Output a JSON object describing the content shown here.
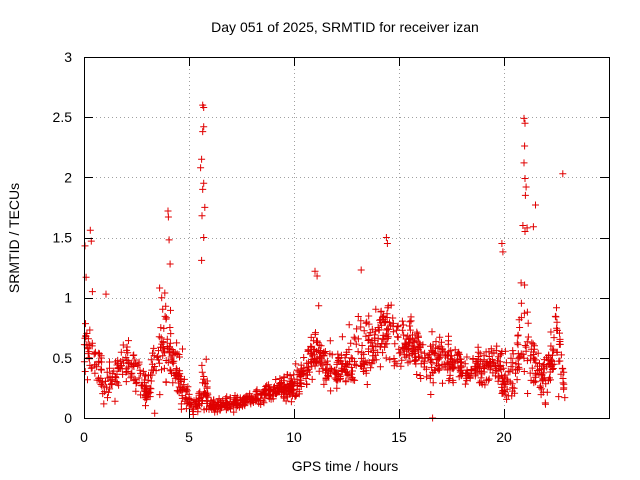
{
  "chart_data": {
    "type": "scatter",
    "title": "Day 051 of 2025, SRMTID for receiver izan",
    "xlabel": "GPS time / hours",
    "ylabel": "SRMTID / TECUs",
    "xlim": [
      0,
      25
    ],
    "ylim": [
      0,
      3
    ],
    "x_ticks": [
      0,
      5,
      10,
      15,
      20
    ],
    "x_tick_labels": [
      "0",
      "5",
      "10",
      "15",
      "20"
    ],
    "y_ticks": [
      0,
      0.5,
      1,
      1.5,
      2,
      2.5,
      3
    ],
    "y_tick_labels": [
      "0",
      "0.5",
      "1",
      "1.5",
      "2",
      "2.5",
      "3"
    ],
    "grid": true,
    "marker": "+",
    "series": [
      {
        "name": "SRMTID",
        "color": "#e00000",
        "envelope": {
          "x": [
            0,
            0.3,
            0.6,
            1.0,
            1.5,
            2.2,
            3.0,
            3.5,
            4.0,
            4.5,
            5.0,
            5.4,
            5.7,
            6.0,
            6.5,
            7.0,
            7.5,
            8.0,
            8.5,
            9.0,
            9.5,
            10.0,
            10.5,
            11.0,
            11.5,
            12.0,
            12.5,
            13.0,
            13.5,
            14.0,
            14.5,
            15.0,
            15.5,
            16.0,
            16.5,
            17.0,
            17.5,
            18.0,
            18.5,
            19.0,
            19.5,
            20.0,
            20.5,
            21.0,
            21.3,
            21.6,
            22.0,
            22.5,
            22.9
          ],
          "mean": [
            0.6,
            0.55,
            0.45,
            0.3,
            0.35,
            0.45,
            0.2,
            0.55,
            0.6,
            0.35,
            0.15,
            0.1,
            0.3,
            0.1,
            0.1,
            0.12,
            0.15,
            0.15,
            0.2,
            0.22,
            0.25,
            0.28,
            0.35,
            0.55,
            0.45,
            0.4,
            0.45,
            0.55,
            0.6,
            0.65,
            0.8,
            0.65,
            0.6,
            0.55,
            0.5,
            0.5,
            0.45,
            0.4,
            0.4,
            0.42,
            0.5,
            0.3,
            0.35,
            0.8,
            0.5,
            0.4,
            0.3,
            0.7,
            0.2
          ],
          "spread": [
            0.25,
            0.2,
            0.15,
            0.15,
            0.15,
            0.15,
            0.1,
            0.3,
            0.3,
            0.2,
            0.05,
            0.05,
            0.3,
            0.04,
            0.04,
            0.05,
            0.05,
            0.05,
            0.06,
            0.06,
            0.08,
            0.1,
            0.12,
            0.2,
            0.15,
            0.12,
            0.15,
            0.2,
            0.2,
            0.2,
            0.25,
            0.2,
            0.18,
            0.15,
            0.15,
            0.15,
            0.12,
            0.12,
            0.1,
            0.12,
            0.15,
            0.15,
            0.2,
            0.4,
            0.2,
            0.2,
            0.15,
            0.25,
            0.1
          ]
        },
        "count": 1400,
        "seed": 51,
        "notable_points": [
          {
            "x": 0.05,
            "y": 1.43
          },
          {
            "x": 0.1,
            "y": 1.17
          },
          {
            "x": 0.3,
            "y": 1.56
          },
          {
            "x": 0.35,
            "y": 1.47
          },
          {
            "x": 0.4,
            "y": 1.05
          },
          {
            "x": 1.05,
            "y": 1.03
          },
          {
            "x": 3.6,
            "y": 1.08
          },
          {
            "x": 3.7,
            "y": 1.0
          },
          {
            "x": 4.0,
            "y": 1.72
          },
          {
            "x": 4.02,
            "y": 1.67
          },
          {
            "x": 4.05,
            "y": 1.48
          },
          {
            "x": 4.1,
            "y": 1.28
          },
          {
            "x": 5.65,
            "y": 2.6
          },
          {
            "x": 5.7,
            "y": 2.58
          },
          {
            "x": 5.7,
            "y": 2.42
          },
          {
            "x": 5.65,
            "y": 2.38
          },
          {
            "x": 5.6,
            "y": 2.15
          },
          {
            "x": 5.55,
            "y": 2.08
          },
          {
            "x": 5.7,
            "y": 1.95
          },
          {
            "x": 5.65,
            "y": 1.9
          },
          {
            "x": 5.75,
            "y": 1.75
          },
          {
            "x": 5.62,
            "y": 1.68
          },
          {
            "x": 5.7,
            "y": 1.5
          },
          {
            "x": 5.6,
            "y": 1.31
          },
          {
            "x": 13.2,
            "y": 1.23
          },
          {
            "x": 14.4,
            "y": 1.5
          },
          {
            "x": 14.45,
            "y": 1.45
          },
          {
            "x": 11.0,
            "y": 1.22
          },
          {
            "x": 11.1,
            "y": 1.18
          },
          {
            "x": 19.9,
            "y": 1.45
          },
          {
            "x": 19.95,
            "y": 1.38
          },
          {
            "x": 16.6,
            "y": 0.0
          },
          {
            "x": 20.95,
            "y": 2.49
          },
          {
            "x": 21.0,
            "y": 2.45
          },
          {
            "x": 20.98,
            "y": 2.26
          },
          {
            "x": 20.95,
            "y": 2.12
          },
          {
            "x": 21.0,
            "y": 1.99
          },
          {
            "x": 21.05,
            "y": 1.92
          },
          {
            "x": 21.02,
            "y": 1.85
          },
          {
            "x": 20.9,
            "y": 1.6
          },
          {
            "x": 21.1,
            "y": 1.58
          },
          {
            "x": 21.0,
            "y": 1.55
          },
          {
            "x": 21.4,
            "y": 1.59
          },
          {
            "x": 21.5,
            "y": 1.77
          },
          {
            "x": 22.8,
            "y": 2.03
          }
        ]
      }
    ]
  }
}
